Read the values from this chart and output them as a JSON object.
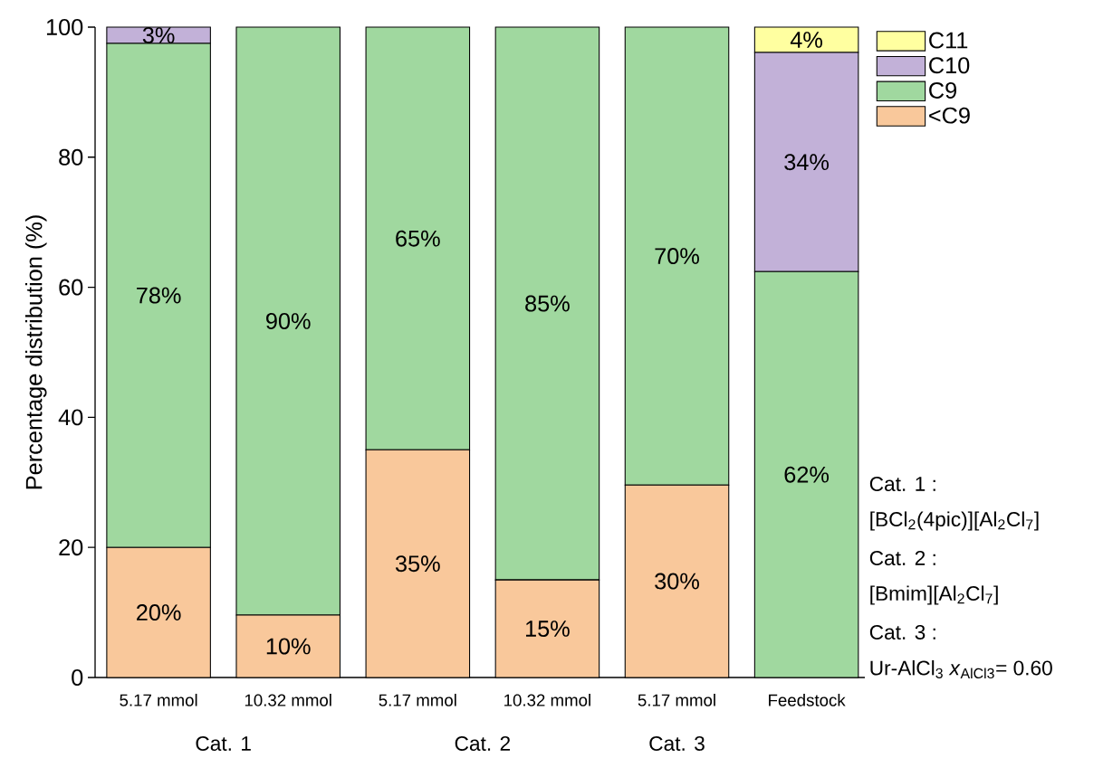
{
  "chart_data": {
    "type": "bar",
    "stacked": true,
    "ylabel": "Percentage distribution (%)",
    "categories": [
      "5.17 mmol",
      "10.32 mmol",
      "5.17 mmol",
      "10.32 mmol",
      "5.17 mmol",
      "Feedstock"
    ],
    "series": [
      {
        "name": "<C9",
        "color": "#f9c89b",
        "values": [
          20,
          9.6,
          35,
          15,
          29.6,
          0
        ],
        "value_labels": [
          "20%",
          "10%",
          "35%",
          "15%",
          "30%",
          null
        ]
      },
      {
        "name": "C9",
        "color": "#a0d89f",
        "values": [
          77.5,
          90.4,
          65,
          85,
          70.4,
          62.4
        ],
        "value_labels": [
          "78%",
          "90%",
          "65%",
          "85%",
          "70%",
          "62%"
        ]
      },
      {
        "name": "C10",
        "color": "#c2b1d8",
        "values": [
          2.5,
          0,
          0,
          0,
          0,
          33.7
        ],
        "value_labels": [
          "3%",
          null,
          null,
          null,
          null,
          "34%"
        ]
      },
      {
        "name": "C11",
        "color": "#ffffa0",
        "values": [
          0,
          0,
          0,
          0,
          0,
          3.9
        ],
        "value_labels": [
          null,
          null,
          null,
          null,
          null,
          "4%"
        ]
      }
    ],
    "ylim": [
      0,
      100
    ],
    "yticks": [
      0,
      20,
      40,
      60,
      80,
      100
    ],
    "legend": "top right",
    "annotations": [
      "Cat. 1",
      "Cat. 2",
      "Cat. 3",
      "Cat. 1 :",
      "[BCl$_{2}$(4pic)][Al$_{2}$Cl$_{7}$]",
      "Cat. 2 :",
      "[Bmim][Al$_{2}$Cl$_{7}$]",
      "Cat. 3 :",
      "Ur-AlCl$_{3}$ *x*$_{AlCl3}$= 0.60"
    ]
  }
}
